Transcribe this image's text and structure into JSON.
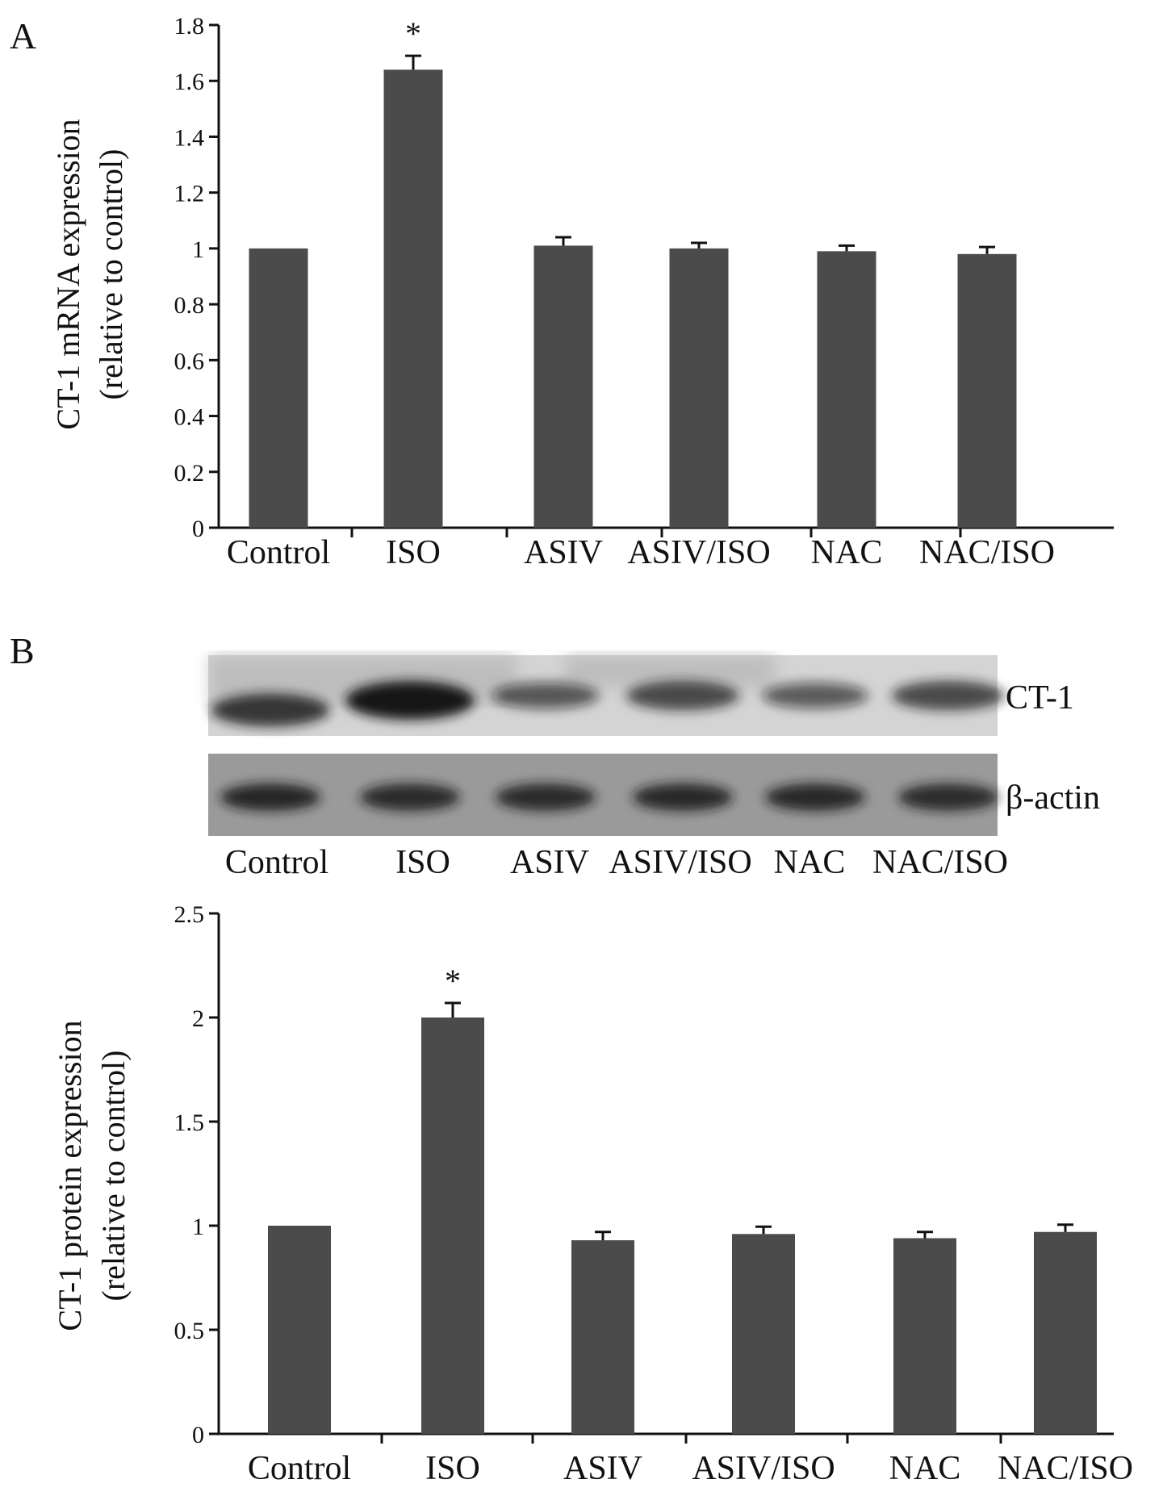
{
  "panels": {
    "a_label": "A",
    "b_label": "B"
  },
  "colors": {
    "bar": "#4b4b4b",
    "axis": "#111111",
    "blot_background": "#d2d2d2",
    "band": "#181818"
  },
  "blot": {
    "rows": [
      "CT-1",
      "β-actin"
    ],
    "lanes": [
      "Control",
      "ISO",
      "ASIV",
      "ASIV/ISO",
      "NAC",
      "NAC/ISO"
    ],
    "ct1_intensity": [
      0.75,
      1.0,
      0.45,
      0.6,
      0.42,
      0.6
    ],
    "actin_intensity": [
      0.85,
      0.8,
      0.8,
      0.82,
      0.82,
      0.78
    ]
  },
  "chart_data": [
    {
      "type": "bar",
      "panel": "A",
      "categories": [
        "Control",
        "ISO",
        "ASIV",
        "ASIV/ISO",
        "NAC",
        "NAC/ISO"
      ],
      "values": [
        1.0,
        1.64,
        1.01,
        1.0,
        0.99,
        0.98
      ],
      "errors": [
        0.0,
        0.05,
        0.03,
        0.02,
        0.02,
        0.025
      ],
      "significance": [
        "",
        "*",
        "",
        "",
        "",
        ""
      ],
      "ylabel_line1": "CT-1 mRNA expression",
      "ylabel_line2": "(relative to control)",
      "ylim": [
        0,
        1.8
      ],
      "yticks": [
        "0",
        "0.2",
        "0.4",
        "0.6",
        "0.8",
        "1",
        "1.2",
        "1.4",
        "1.6",
        "1.8"
      ],
      "grid": false
    },
    {
      "type": "bar",
      "panel": "B",
      "categories": [
        "Control",
        "ISO",
        "ASIV",
        "ASIV/ISO",
        "NAC",
        "NAC/ISO"
      ],
      "values": [
        1.0,
        2.0,
        0.93,
        0.96,
        0.94,
        0.97
      ],
      "errors": [
        0.0,
        0.07,
        0.04,
        0.035,
        0.03,
        0.035
      ],
      "significance": [
        "",
        "*",
        "",
        "",
        "",
        ""
      ],
      "ylabel_line1": "CT-1 protein expression",
      "ylabel_line2": "(relative to control)",
      "ylim": [
        0,
        2.5
      ],
      "yticks": [
        "0",
        "0.5",
        "1",
        "1.5",
        "2",
        "2.5"
      ],
      "grid": false
    }
  ]
}
